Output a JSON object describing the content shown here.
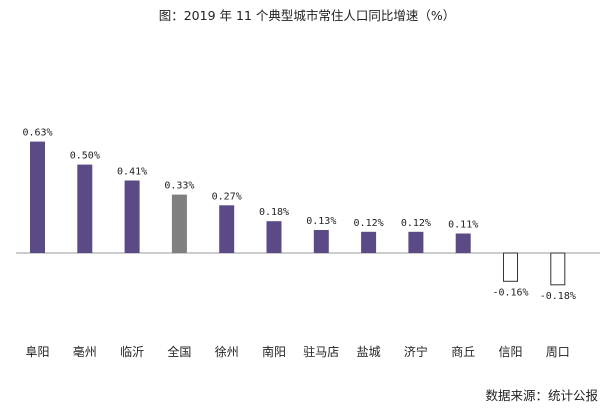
{
  "chart_data": {
    "type": "bar",
    "title": "图：2019 年 11 个典型城市常住人口同比增速（%）",
    "xlabel": "",
    "ylabel": "",
    "grid": false,
    "legend": "none",
    "ylim": [
      -0.18,
      0.63
    ],
    "categories": [
      "阜阳",
      "亳州",
      "临沂",
      "全国",
      "徐州",
      "南阳",
      "驻马店",
      "盐城",
      "济宁",
      "商丘",
      "信阳",
      "周口"
    ],
    "values": [
      0.63,
      0.5,
      0.41,
      0.33,
      0.27,
      0.18,
      0.13,
      0.12,
      0.12,
      0.11,
      -0.16,
      -0.18
    ],
    "data_labels": [
      "0.63%",
      "0.50%",
      "0.41%",
      "0.33%",
      "0.27%",
      "0.18%",
      "0.13%",
      "0.12%",
      "0.12%",
      "0.11%",
      "-0.16%",
      "-0.18%"
    ],
    "colors": {
      "city_bar": "#5b4a86",
      "national_bar": "#808080",
      "negative_fill": "#ffffff",
      "negative_stroke": "#333333",
      "axis": "#999999"
    },
    "highlight_category": "全国",
    "source": "数据来源：统计公报"
  }
}
